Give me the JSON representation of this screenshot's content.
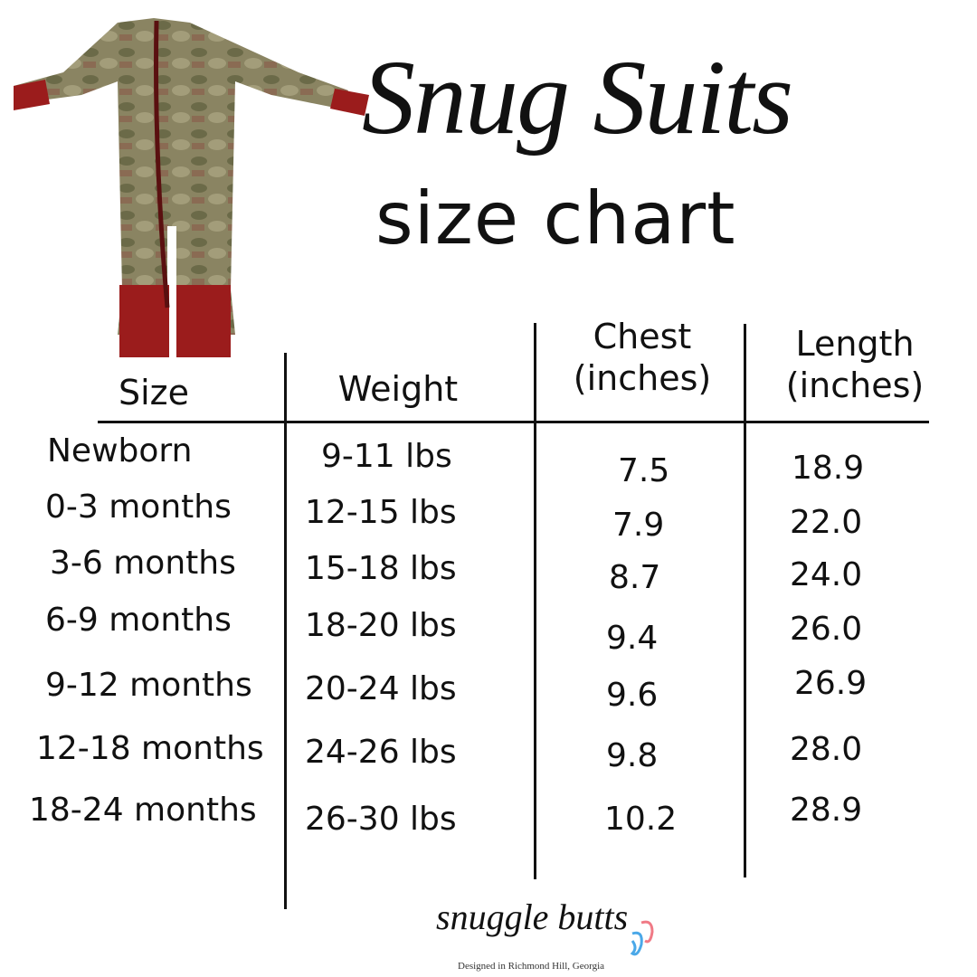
{
  "title": "Snug Suits",
  "subtitle": "size chart",
  "table": {
    "headers": {
      "size": "Size",
      "weight": "Weight",
      "chest": "Chest (inches)",
      "length": "Length (inches)"
    },
    "rows": [
      {
        "size": "Newborn",
        "weight": "9-11 lbs",
        "chest": "7.5",
        "length": "18.9"
      },
      {
        "size": "0-3 months",
        "weight": "12-15 lbs",
        "chest": "7.9",
        "length": "22.0"
      },
      {
        "size": "3-6 months",
        "weight": "15-18 lbs",
        "chest": "8.7",
        "length": "24.0"
      },
      {
        "size": "6-9 months",
        "weight": "18-20 lbs",
        "chest": "9.4",
        "length": "26.0"
      },
      {
        "size": "9-12 months",
        "weight": "20-24 lbs",
        "chest": "9.6",
        "length": "26.9"
      },
      {
        "size": "12-18 months",
        "weight": "24-26 lbs",
        "chest": "9.8",
        "length": "28.0"
      },
      {
        "size": "18-24 months",
        "weight": "26-30 lbs",
        "chest": "10.2",
        "length": "28.9"
      }
    ]
  },
  "brand": {
    "name": "snuggle butts",
    "tagline": "Designed in Richmond Hill, Georgia"
  },
  "colors": {
    "cuff": "#9b1c1c",
    "camo": "#8a8462",
    "ink": "#111111",
    "foot_pink": "#f07a86",
    "foot_blue": "#4aa8e8"
  }
}
